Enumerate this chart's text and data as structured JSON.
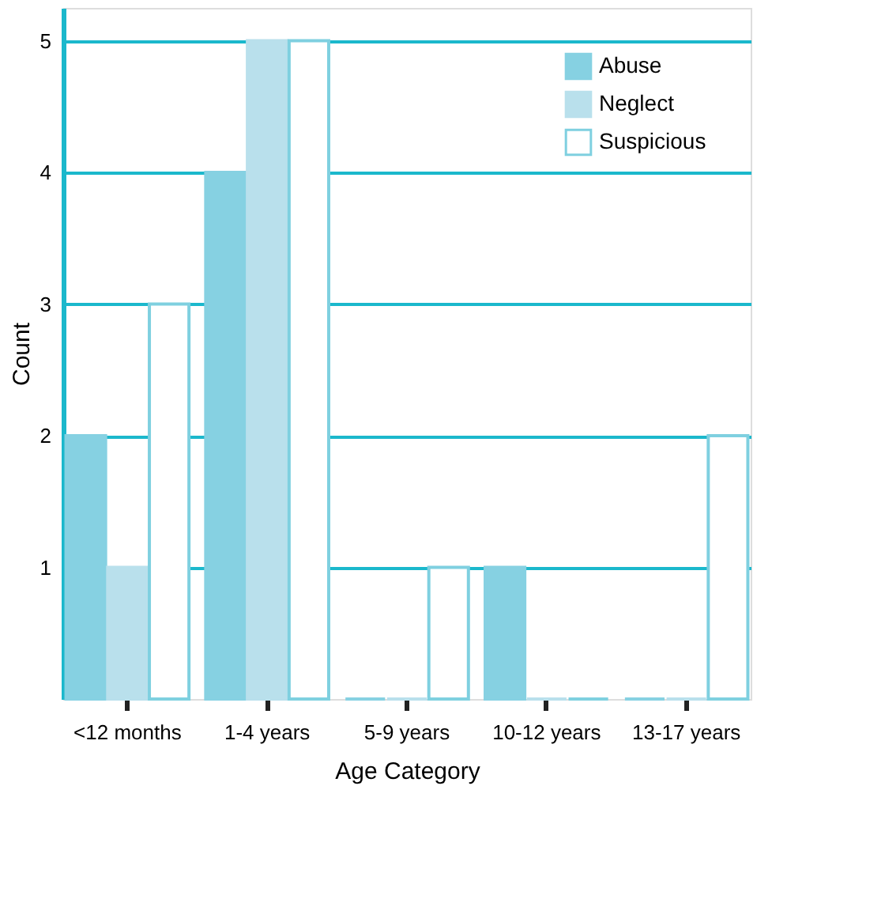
{
  "chart_data": {
    "type": "bar",
    "xlabel": "Age Category",
    "ylabel": "Count",
    "categories": [
      "<12 months",
      "1-4 years",
      "5-9 years",
      "10-12 years",
      "13-17 years"
    ],
    "series": [
      {
        "name": "Abuse",
        "color": "#86d1e2",
        "values": [
          2,
          4,
          0,
          1,
          0
        ]
      },
      {
        "name": "Neglect",
        "color": "#b9e0ec",
        "values": [
          1,
          5,
          0,
          0,
          0
        ]
      },
      {
        "name": "Suspicious",
        "color": "#7fd0e0",
        "values": [
          3,
          5,
          1,
          0,
          2
        ]
      }
    ],
    "ylim": [
      0,
      5.25
    ],
    "yticks": [
      1,
      2,
      3,
      4,
      5
    ],
    "grid": "y",
    "legend": "top right"
  }
}
